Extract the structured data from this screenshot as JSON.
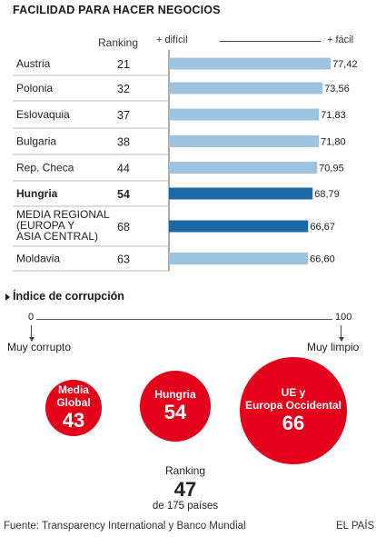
{
  "title": "FACILIDAD PARA HACER NEGOCIOS",
  "ranking_header": "Ranking",
  "scale": {
    "min_label": "+ difícil",
    "max_label": "+ fácil"
  },
  "colors": {
    "bar": "#9ec3e0",
    "bar_highlight": "#1b6aa5",
    "bubble": "#e2001a",
    "divider": "#bbbbbb"
  },
  "chart_data": [
    {
      "type": "bar",
      "title": "FACILIDAD PARA HACER NEGOCIOS",
      "orientation": "horizontal",
      "xlim": [
        0,
        80
      ],
      "grid": false,
      "rows": [
        {
          "label": "Austria",
          "ranking": "21",
          "value": 77.42,
          "value_label": "77,42",
          "highlight": false
        },
        {
          "label": "Polonia",
          "ranking": "32",
          "value": 73.56,
          "value_label": "73,56",
          "highlight": false
        },
        {
          "label": "Eslovaquia",
          "ranking": "37",
          "value": 71.83,
          "value_label": "71,83",
          "highlight": false
        },
        {
          "label": "Bulgaria",
          "ranking": "38",
          "value": 71.8,
          "value_label": "71,80",
          "highlight": false
        },
        {
          "label": "Rep. Checa",
          "ranking": "44",
          "value": 70.95,
          "value_label": "70,95",
          "highlight": false
        },
        {
          "label": "Hungria",
          "ranking": "54",
          "value": 68.79,
          "value_label": "68,79",
          "highlight": true
        },
        {
          "label": "MEDIA REGIONAL (EUROPA Y ASIA CENTRAL)",
          "label_lines": [
            "MEDIA REGIONAL",
            "(EUROPA Y",
            "ASIA CENTRAL)"
          ],
          "ranking": "68",
          "value": 66.67,
          "value_label": "66,67",
          "highlight": true
        },
        {
          "label": "Moldavia",
          "ranking": "63",
          "value": 66.6,
          "value_label": "66,60",
          "highlight": false
        }
      ]
    },
    {
      "type": "bubble",
      "title": "Índice de corrupción",
      "scale": {
        "min": 0,
        "max": 100,
        "min_label": "Muy corrupto",
        "max_label": "Muy limpio"
      },
      "points": [
        {
          "label": "Media Global",
          "label_lines": [
            "Media",
            "Global"
          ],
          "value": 43
        },
        {
          "label": "Hungria",
          "label_lines": [
            "Hungria"
          ],
          "value": 54
        },
        {
          "label": "UE y Europa Occidental",
          "label_lines": [
            "UE y",
            "Europa Occidental"
          ],
          "value": 66
        }
      ]
    }
  ],
  "corruption_title": "Índice de corrupción",
  "axis": {
    "min": "0",
    "max": "100",
    "min_label": "Muy corrupto",
    "max_label": "Muy limpio"
  },
  "ranking_box": {
    "caption": "Ranking",
    "value": "47",
    "of": "de 175 países"
  },
  "footer": {
    "source": "Fuente: Transparency International y Banco Mundial",
    "brand": "EL PAÍS"
  }
}
